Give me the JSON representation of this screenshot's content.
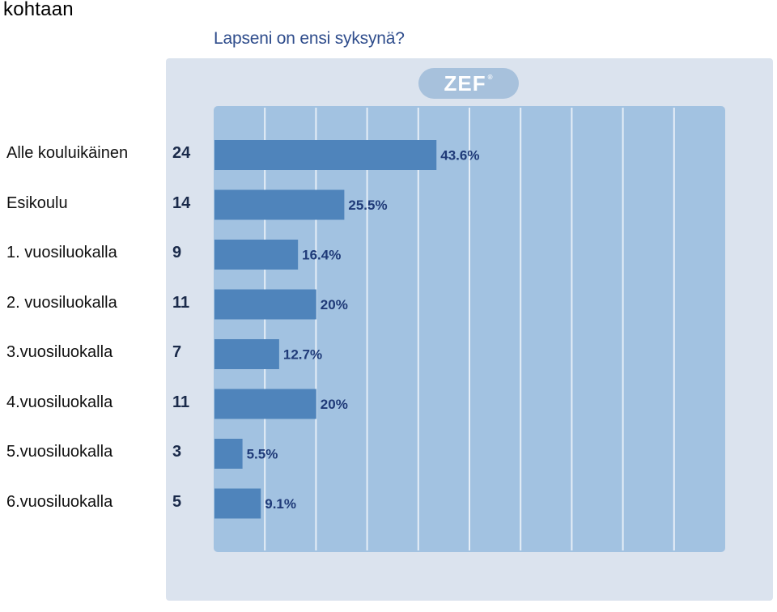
{
  "header_text": "kohtaan",
  "logo_text": "ZEF",
  "colors": {
    "panel": "#dbe3ee",
    "plot": "#a2c2e1",
    "bar": "#4f84bb",
    "gridline": "#e6eef7",
    "pct_text": "#1f3a78"
  },
  "chart_data": {
    "type": "bar",
    "orientation": "horizontal",
    "title": "Lapseni on ensi syksynä?",
    "categories": [
      "Alle kouluikäinen",
      "Esikoulu",
      "1. vuosiluokalla",
      "2. vuosiluokalla",
      "3.vuosiluokalla",
      "4.vuosiluokalla",
      "5.vuosiluokalla",
      "6.vuosiluokalla"
    ],
    "counts": [
      "24",
      "14",
      "9",
      "11",
      "7",
      "11",
      "3",
      "5"
    ],
    "values": [
      43.6,
      25.5,
      16.4,
      20,
      12.7,
      20,
      5.5,
      9.1
    ],
    "percent_labels": [
      "43.6%",
      "25.5%",
      "16.4%",
      "20%",
      "12.7%",
      "20%",
      "5.5%",
      "9.1%"
    ],
    "xlim": [
      0,
      100
    ],
    "grid": true,
    "legend": "none"
  }
}
